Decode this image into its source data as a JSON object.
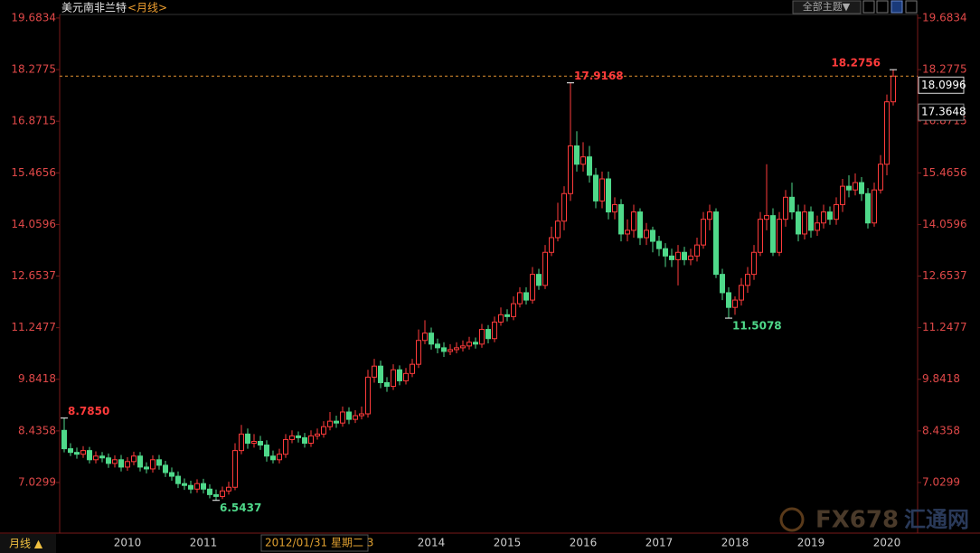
{
  "chart_data": {
    "type": "candlestick",
    "title": "美元南非兰特",
    "subtitle": "<月线>",
    "up_color": "#ff3b3b",
    "down_color": "#4fd98a",
    "ylim": [
      5.651,
      19.78
    ],
    "yticks": [
      7.0299,
      8.4358,
      9.8418,
      11.2477,
      12.6537,
      14.0596,
      15.4656,
      16.8715,
      18.2775,
      19.6834
    ],
    "categories": [
      null,
      null,
      null,
      null,
      null,
      null,
      null,
      null,
      null,
      null,
      "2010",
      null,
      null,
      null,
      null,
      null,
      null,
      null,
      null,
      null,
      null,
      null,
      "2011",
      null,
      null,
      null,
      null,
      null,
      null,
      null,
      null,
      null,
      null,
      null,
      null,
      null,
      null,
      null,
      null,
      null,
      null,
      null,
      null,
      null,
      null,
      null,
      null,
      null,
      null,
      null,
      null,
      null,
      null,
      null,
      null,
      null,
      null,
      null,
      "2014",
      null,
      null,
      null,
      null,
      null,
      null,
      null,
      null,
      null,
      null,
      null,
      "2015",
      null,
      null,
      null,
      null,
      null,
      null,
      null,
      null,
      null,
      null,
      null,
      "2016",
      null,
      null,
      null,
      null,
      null,
      null,
      null,
      null,
      null,
      null,
      null,
      "2017",
      null,
      null,
      null,
      null,
      null,
      null,
      null,
      null,
      null,
      null,
      null,
      "2018",
      null,
      null,
      null,
      null,
      null,
      null,
      null,
      null,
      null,
      null,
      null,
      "2019",
      null,
      null,
      null,
      null,
      null,
      null,
      null,
      null,
      null,
      null,
      null,
      "2020",
      null
    ],
    "candles": [
      [
        8.45,
        8.785,
        7.85,
        7.95
      ],
      [
        7.95,
        8.1,
        7.75,
        7.85
      ],
      [
        7.85,
        7.98,
        7.68,
        7.8
      ],
      [
        7.8,
        8.02,
        7.7,
        7.9
      ],
      [
        7.9,
        8.0,
        7.55,
        7.65
      ],
      [
        7.65,
        7.88,
        7.55,
        7.75
      ],
      [
        7.75,
        7.86,
        7.58,
        7.7
      ],
      [
        7.7,
        7.82,
        7.43,
        7.55
      ],
      [
        7.55,
        7.77,
        7.44,
        7.65
      ],
      [
        7.65,
        7.78,
        7.33,
        7.45
      ],
      [
        7.45,
        7.72,
        7.35,
        7.6
      ],
      [
        7.6,
        7.87,
        7.5,
        7.75
      ],
      [
        7.75,
        7.86,
        7.33,
        7.45
      ],
      [
        7.45,
        7.58,
        7.28,
        7.4
      ],
      [
        7.4,
        7.77,
        7.3,
        7.65
      ],
      [
        7.65,
        7.78,
        7.38,
        7.5
      ],
      [
        7.5,
        7.62,
        7.18,
        7.3
      ],
      [
        7.3,
        7.44,
        7.08,
        7.2
      ],
      [
        7.2,
        7.33,
        6.88,
        7.0
      ],
      [
        7.0,
        7.14,
        6.83,
        6.95
      ],
      [
        6.95,
        7.08,
        6.73,
        6.85
      ],
      [
        6.85,
        7.12,
        6.75,
        7.0
      ],
      [
        7.0,
        7.13,
        6.73,
        6.85
      ],
      [
        6.85,
        6.98,
        6.6,
        6.7
      ],
      [
        6.7,
        6.84,
        6.5437,
        6.65
      ],
      [
        6.65,
        6.92,
        6.58,
        6.8
      ],
      [
        6.8,
        7.05,
        6.7,
        6.9
      ],
      [
        6.9,
        8.1,
        6.82,
        7.9
      ],
      [
        7.9,
        8.6,
        7.8,
        8.35
      ],
      [
        8.35,
        8.5,
        7.95,
        8.1
      ],
      [
        8.1,
        8.35,
        7.98,
        8.15
      ],
      [
        8.15,
        8.3,
        7.92,
        8.05
      ],
      [
        8.05,
        8.18,
        7.6,
        7.75
      ],
      [
        7.75,
        7.9,
        7.55,
        7.65
      ],
      [
        7.65,
        7.95,
        7.55,
        7.8
      ],
      [
        7.8,
        8.35,
        7.7,
        8.2
      ],
      [
        8.2,
        8.45,
        8.1,
        8.3
      ],
      [
        8.3,
        8.42,
        8.12,
        8.25
      ],
      [
        8.25,
        8.38,
        7.98,
        8.1
      ],
      [
        8.1,
        8.45,
        8.0,
        8.3
      ],
      [
        8.3,
        8.5,
        8.2,
        8.35
      ],
      [
        8.35,
        8.7,
        8.25,
        8.55
      ],
      [
        8.55,
        8.95,
        8.45,
        8.7
      ],
      [
        8.7,
        8.85,
        8.52,
        8.65
      ],
      [
        8.65,
        9.1,
        8.55,
        8.95
      ],
      [
        8.95,
        9.08,
        8.62,
        8.75
      ],
      [
        8.75,
        9.0,
        8.65,
        8.85
      ],
      [
        8.85,
        9.1,
        8.75,
        8.9
      ],
      [
        8.9,
        10.1,
        8.8,
        9.9
      ],
      [
        9.9,
        10.4,
        9.75,
        10.2
      ],
      [
        10.2,
        10.35,
        9.6,
        9.75
      ],
      [
        9.75,
        9.9,
        9.5,
        9.65
      ],
      [
        9.65,
        10.25,
        9.55,
        10.1
      ],
      [
        10.1,
        10.22,
        9.68,
        9.8
      ],
      [
        9.8,
        10.15,
        9.7,
        10.0
      ],
      [
        10.0,
        10.4,
        9.9,
        10.25
      ],
      [
        10.25,
        11.2,
        10.15,
        10.9
      ],
      [
        10.9,
        11.45,
        10.8,
        11.1
      ],
      [
        11.1,
        11.25,
        10.65,
        10.8
      ],
      [
        10.8,
        10.95,
        10.55,
        10.7
      ],
      [
        10.7,
        10.85,
        10.45,
        10.6
      ],
      [
        10.6,
        10.8,
        10.5,
        10.65
      ],
      [
        10.65,
        10.85,
        10.55,
        10.7
      ],
      [
        10.7,
        10.9,
        10.6,
        10.75
      ],
      [
        10.75,
        11.0,
        10.65,
        10.85
      ],
      [
        10.85,
        10.98,
        10.68,
        10.8
      ],
      [
        10.8,
        11.35,
        10.7,
        11.2
      ],
      [
        11.2,
        11.32,
        10.82,
        10.95
      ],
      [
        10.95,
        11.55,
        10.85,
        11.4
      ],
      [
        11.4,
        11.8,
        11.3,
        11.6
      ],
      [
        11.6,
        11.75,
        11.42,
        11.55
      ],
      [
        11.55,
        12.1,
        11.45,
        11.9
      ],
      [
        11.9,
        12.35,
        11.8,
        12.2
      ],
      [
        12.2,
        12.35,
        11.88,
        12.0
      ],
      [
        12.0,
        12.9,
        11.9,
        12.7
      ],
      [
        12.7,
        12.85,
        12.28,
        12.4
      ],
      [
        12.4,
        13.5,
        12.3,
        13.3
      ],
      [
        13.3,
        14.0,
        13.2,
        13.7
      ],
      [
        13.7,
        14.65,
        13.6,
        14.15
      ],
      [
        14.15,
        15.1,
        13.9,
        14.9
      ],
      [
        14.9,
        17.9168,
        14.7,
        16.2
      ],
      [
        16.2,
        16.6,
        15.5,
        15.7
      ],
      [
        15.7,
        16.3,
        15.5,
        15.9
      ],
      [
        15.9,
        16.2,
        15.2,
        15.4
      ],
      [
        15.4,
        15.6,
        14.5,
        14.7
      ],
      [
        14.7,
        15.5,
        14.5,
        15.3
      ],
      [
        15.3,
        15.5,
        14.2,
        14.4
      ],
      [
        14.4,
        14.8,
        14.2,
        14.6
      ],
      [
        14.6,
        14.75,
        13.6,
        13.8
      ],
      [
        13.8,
        14.2,
        13.6,
        13.9
      ],
      [
        13.9,
        14.6,
        13.7,
        14.4
      ],
      [
        14.4,
        14.5,
        13.5,
        13.7
      ],
      [
        13.7,
        14.1,
        13.5,
        13.9
      ],
      [
        13.9,
        14.0,
        13.3,
        13.6
      ],
      [
        13.6,
        13.75,
        13.2,
        13.4
      ],
      [
        13.4,
        13.55,
        12.9,
        13.2
      ],
      [
        13.2,
        13.4,
        12.9,
        13.1
      ],
      [
        13.1,
        13.5,
        12.4,
        13.3
      ],
      [
        13.3,
        13.45,
        12.95,
        13.1
      ],
      [
        13.1,
        13.4,
        12.95,
        13.2
      ],
      [
        13.2,
        13.7,
        13.05,
        13.5
      ],
      [
        13.5,
        14.4,
        13.4,
        14.2
      ],
      [
        14.2,
        14.6,
        13.9,
        14.4
      ],
      [
        14.4,
        14.5,
        12.6,
        12.7
      ],
      [
        12.7,
        12.85,
        12.0,
        12.2
      ],
      [
        12.2,
        12.35,
        11.5078,
        11.8
      ],
      [
        11.8,
        12.1,
        11.6,
        12.0
      ],
      [
        12.0,
        12.6,
        11.85,
        12.4
      ],
      [
        12.4,
        12.9,
        12.2,
        12.7
      ],
      [
        12.7,
        13.5,
        12.55,
        13.3
      ],
      [
        13.3,
        14.4,
        13.2,
        14.2
      ],
      [
        14.2,
        15.7,
        13.9,
        14.3
      ],
      [
        14.3,
        14.5,
        13.2,
        13.3
      ],
      [
        13.3,
        14.4,
        13.2,
        14.2
      ],
      [
        14.2,
        15.0,
        14.0,
        14.8
      ],
      [
        14.8,
        15.2,
        14.2,
        14.4
      ],
      [
        14.4,
        14.6,
        13.6,
        13.8
      ],
      [
        13.8,
        14.6,
        13.65,
        14.4
      ],
      [
        14.4,
        14.55,
        13.7,
        13.9
      ],
      [
        13.9,
        14.3,
        13.75,
        14.1
      ],
      [
        14.1,
        14.6,
        13.95,
        14.4
      ],
      [
        14.4,
        14.55,
        14.05,
        14.2
      ],
      [
        14.2,
        14.8,
        14.05,
        14.6
      ],
      [
        14.6,
        15.3,
        14.4,
        15.1
      ],
      [
        15.1,
        15.4,
        14.8,
        15.0
      ],
      [
        15.0,
        15.45,
        14.85,
        15.2
      ],
      [
        15.2,
        15.35,
        14.7,
        14.9
      ],
      [
        14.9,
        15.05,
        13.95,
        14.1
      ],
      [
        14.1,
        15.2,
        14.0,
        15.0
      ],
      [
        15.0,
        15.95,
        14.9,
        15.7
      ],
      [
        15.7,
        17.6,
        15.4,
        17.4
      ],
      [
        17.4,
        18.2756,
        17.3,
        18.0996
      ]
    ],
    "annotations": [
      {
        "value": 8.785,
        "label": "8.7850"
      },
      {
        "value": 6.5437,
        "label": "6.5437"
      },
      {
        "value": 17.9168,
        "label": "17.9168"
      },
      {
        "value": 11.5078,
        "label": "11.5078"
      },
      {
        "value": 18.2756,
        "label": "18.2756"
      }
    ],
    "price_tags": [
      18.0996,
      17.3648
    ],
    "crosshair_label": "2012/01/31 星期二 3"
  },
  "toolbar": {
    "theme_button": "全部主题▼"
  },
  "footer": {
    "period_button": "月线 ▲"
  },
  "watermark": {
    "brand": "FX678",
    "name": "汇通网"
  }
}
